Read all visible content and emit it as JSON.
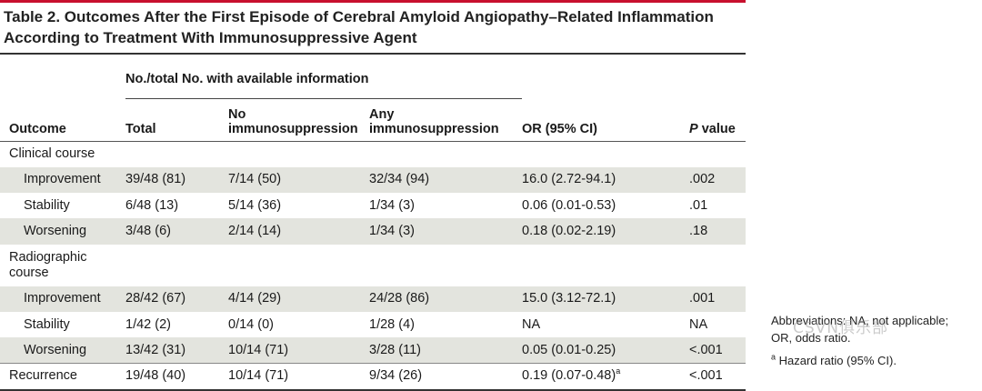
{
  "title": "Table 2. Outcomes After the First Episode of Cerebral Amyloid Angiopathy–Related Inflammation According to Treatment With Immunosuppressive Agent",
  "header": {
    "span_label": "No./total No. with available information",
    "outcome": "Outcome",
    "total": "Total",
    "no_immuno": "No immunosuppression",
    "any_immuno": "Any immunosuppression",
    "or_ci": "OR (95% CI)",
    "p_label_italic": "P",
    "p_label_rest": " value"
  },
  "sections": {
    "clinical": "Clinical course",
    "radiographic": "Radiographic course"
  },
  "rows": {
    "c_improve": {
      "label": "Improvement",
      "total": "39/48 (81)",
      "no": "7/14 (50)",
      "any": "32/34 (94)",
      "or": "16.0 (2.72-94.1)",
      "p": ".002"
    },
    "c_stable": {
      "label": "Stability",
      "total": "6/48 (13)",
      "no": "5/14 (36)",
      "any": "1/34 (3)",
      "or": "0.06 (0.01-0.53)",
      "p": ".01"
    },
    "c_worse": {
      "label": "Worsening",
      "total": "3/48 (6)",
      "no": "2/14 (14)",
      "any": "1/34 (3)",
      "or": "0.18 (0.02-2.19)",
      "p": ".18"
    },
    "r_improve": {
      "label": "Improvement",
      "total": "28/42 (67)",
      "no": "4/14 (29)",
      "any": "24/28 (86)",
      "or": "15.0 (3.12-72.1)",
      "p": ".001"
    },
    "r_stable": {
      "label": "Stability",
      "total": "1/42 (2)",
      "no": "0/14 (0)",
      "any": "1/28 (4)",
      "or": "NA",
      "p": "NA"
    },
    "r_worse": {
      "label": "Worsening",
      "total": "13/42 (31)",
      "no": "10/14 (71)",
      "any": "3/28 (11)",
      "or": "0.05 (0.01-0.25)",
      "p": "<.001"
    },
    "recur": {
      "label": "Recurrence",
      "total": "19/48 (40)",
      "no": "10/14 (71)",
      "any": "9/34 (26)",
      "or": "0.19 (0.07-0.48)",
      "or_sup": "a",
      "p": "<.001"
    }
  },
  "footnotes": {
    "abbrev_line1": "Abbreviations: NA, not applicable;",
    "abbrev_line2": "OR, odds ratio.",
    "a_mark": "a",
    "a_text": " Hazard ratio (95% CI)."
  },
  "watermark": "CSVN俱乐部"
}
